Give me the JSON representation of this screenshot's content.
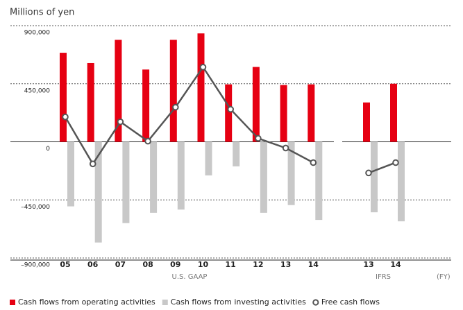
{
  "title": "Millions of yen",
  "x_unit": "(FY)",
  "chart_data": [
    {
      "type": "bar",
      "label": "U.S. GAAP",
      "categories": [
        "05",
        "06",
        "07",
        "08",
        "09",
        "10",
        "11",
        "12",
        "13",
        "14"
      ],
      "ylim": [
        -900000,
        900000
      ],
      "yticks": [
        {
          "value": 900000,
          "label": "900,000"
        },
        {
          "value": 450000,
          "label": "450,000"
        },
        0,
        {
          "value": -450000,
          "label": "–450,000"
        },
        {
          "value": -900000,
          "label": "–900,000"
        }
      ],
      "grid": true,
      "series": [
        {
          "name": "Cash flows from operating activities",
          "type": "bar",
          "color": "#e60012",
          "values": [
            690000,
            610000,
            790000,
            560000,
            790000,
            840000,
            445000,
            580000,
            440000,
            445000
          ]
        },
        {
          "name": "Cash flows from investing activities",
          "type": "bar",
          "color": "#c8c8c8",
          "values": [
            -500000,
            -780000,
            -630000,
            -550000,
            -525000,
            -260000,
            -190000,
            -550000,
            -490000,
            -605000
          ]
        },
        {
          "name": "Free cash flows",
          "type": "line",
          "color": "#555555",
          "values": [
            193000,
            -171000,
            155000,
            5000,
            268000,
            579000,
            252000,
            27000,
            -48000,
            -161000
          ]
        }
      ]
    },
    {
      "type": "bar",
      "label": "IFRS",
      "categories": [
        "13",
        "14"
      ],
      "series": [
        {
          "name": "Cash flows from operating activities",
          "type": "bar",
          "color": "#e60012",
          "values": [
            305000,
            450000
          ]
        },
        {
          "name": "Cash flows from investing activities",
          "type": "bar",
          "color": "#c8c8c8",
          "values": [
            -546000,
            -616000
          ]
        },
        {
          "name": "Free cash flows",
          "type": "line",
          "color": "#555555",
          "values": [
            -241000,
            -161000
          ]
        }
      ]
    }
  ]
}
